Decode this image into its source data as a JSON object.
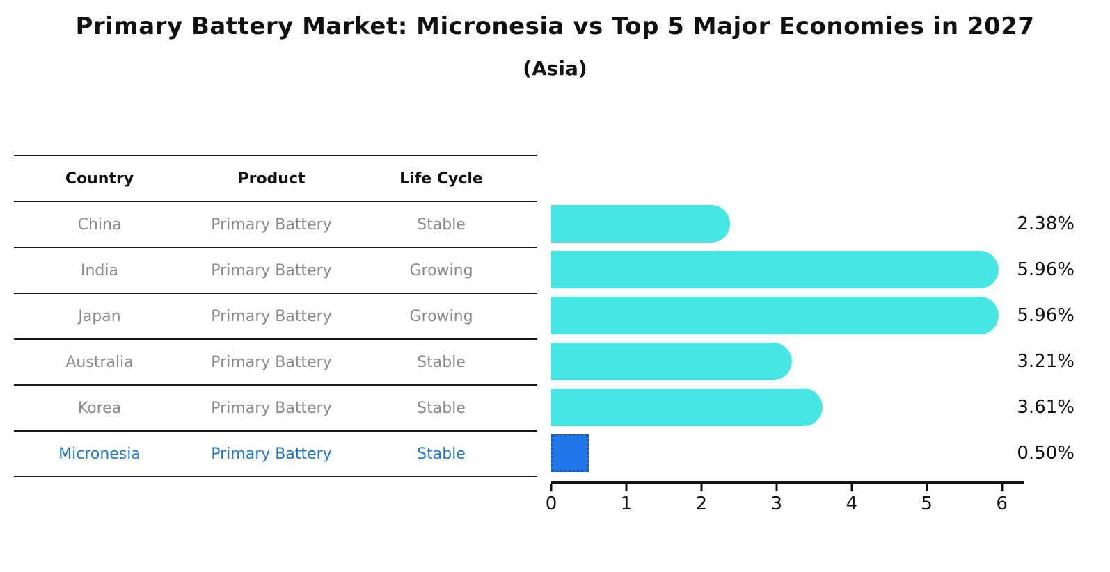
{
  "title": "Primary Battery Market: Micronesia vs Top 5 Major Economies in 2027",
  "subtitle": "(Asia)",
  "table": {
    "headers": [
      "Country",
      "Product",
      "Life Cycle"
    ],
    "rows": [
      {
        "country": "China",
        "product": "Primary Battery",
        "life_cycle": "Stable",
        "highlighted": false
      },
      {
        "country": "India",
        "product": "Primary Battery",
        "life_cycle": "Growing",
        "highlighted": false
      },
      {
        "country": "Japan",
        "product": "Primary Battery",
        "life_cycle": "Growing",
        "highlighted": false
      },
      {
        "country": "Australia",
        "product": "Primary Battery",
        "life_cycle": "Stable",
        "highlighted": false
      },
      {
        "country": "Korea",
        "product": "Primary Battery",
        "life_cycle": "Stable",
        "highlighted": false
      },
      {
        "country": "Micronesia",
        "product": "Primary Battery",
        "life_cycle": "Stable",
        "highlighted": true
      }
    ]
  },
  "chart_data": {
    "type": "bar",
    "orientation": "horizontal",
    "title": "Primary Battery Market: Micronesia vs Top 5 Major Economies in 2027",
    "subtitle": "(Asia)",
    "categories": [
      "China",
      "India",
      "Japan",
      "Australia",
      "Korea",
      "Micronesia"
    ],
    "values": [
      2.38,
      5.96,
      5.96,
      3.21,
      3.61,
      0.5
    ],
    "value_labels": [
      "2.38%",
      "5.96%",
      "5.96%",
      "3.21%",
      "3.61%",
      "0.50%"
    ],
    "highlight_index": 5,
    "x_ticks": [
      0,
      1,
      2,
      3,
      4,
      5,
      6
    ],
    "xlim": [
      0,
      6.3
    ],
    "xlabel": "",
    "ylabel": "",
    "grid": false,
    "legend": false,
    "colors": {
      "bar": "#45e6e3",
      "highlight_bar": "#2277e8",
      "highlight_border": "#1257c8",
      "highlight_text": "#2478c8",
      "row_text": "#8a8a8a",
      "axis_text": "#111111"
    }
  }
}
